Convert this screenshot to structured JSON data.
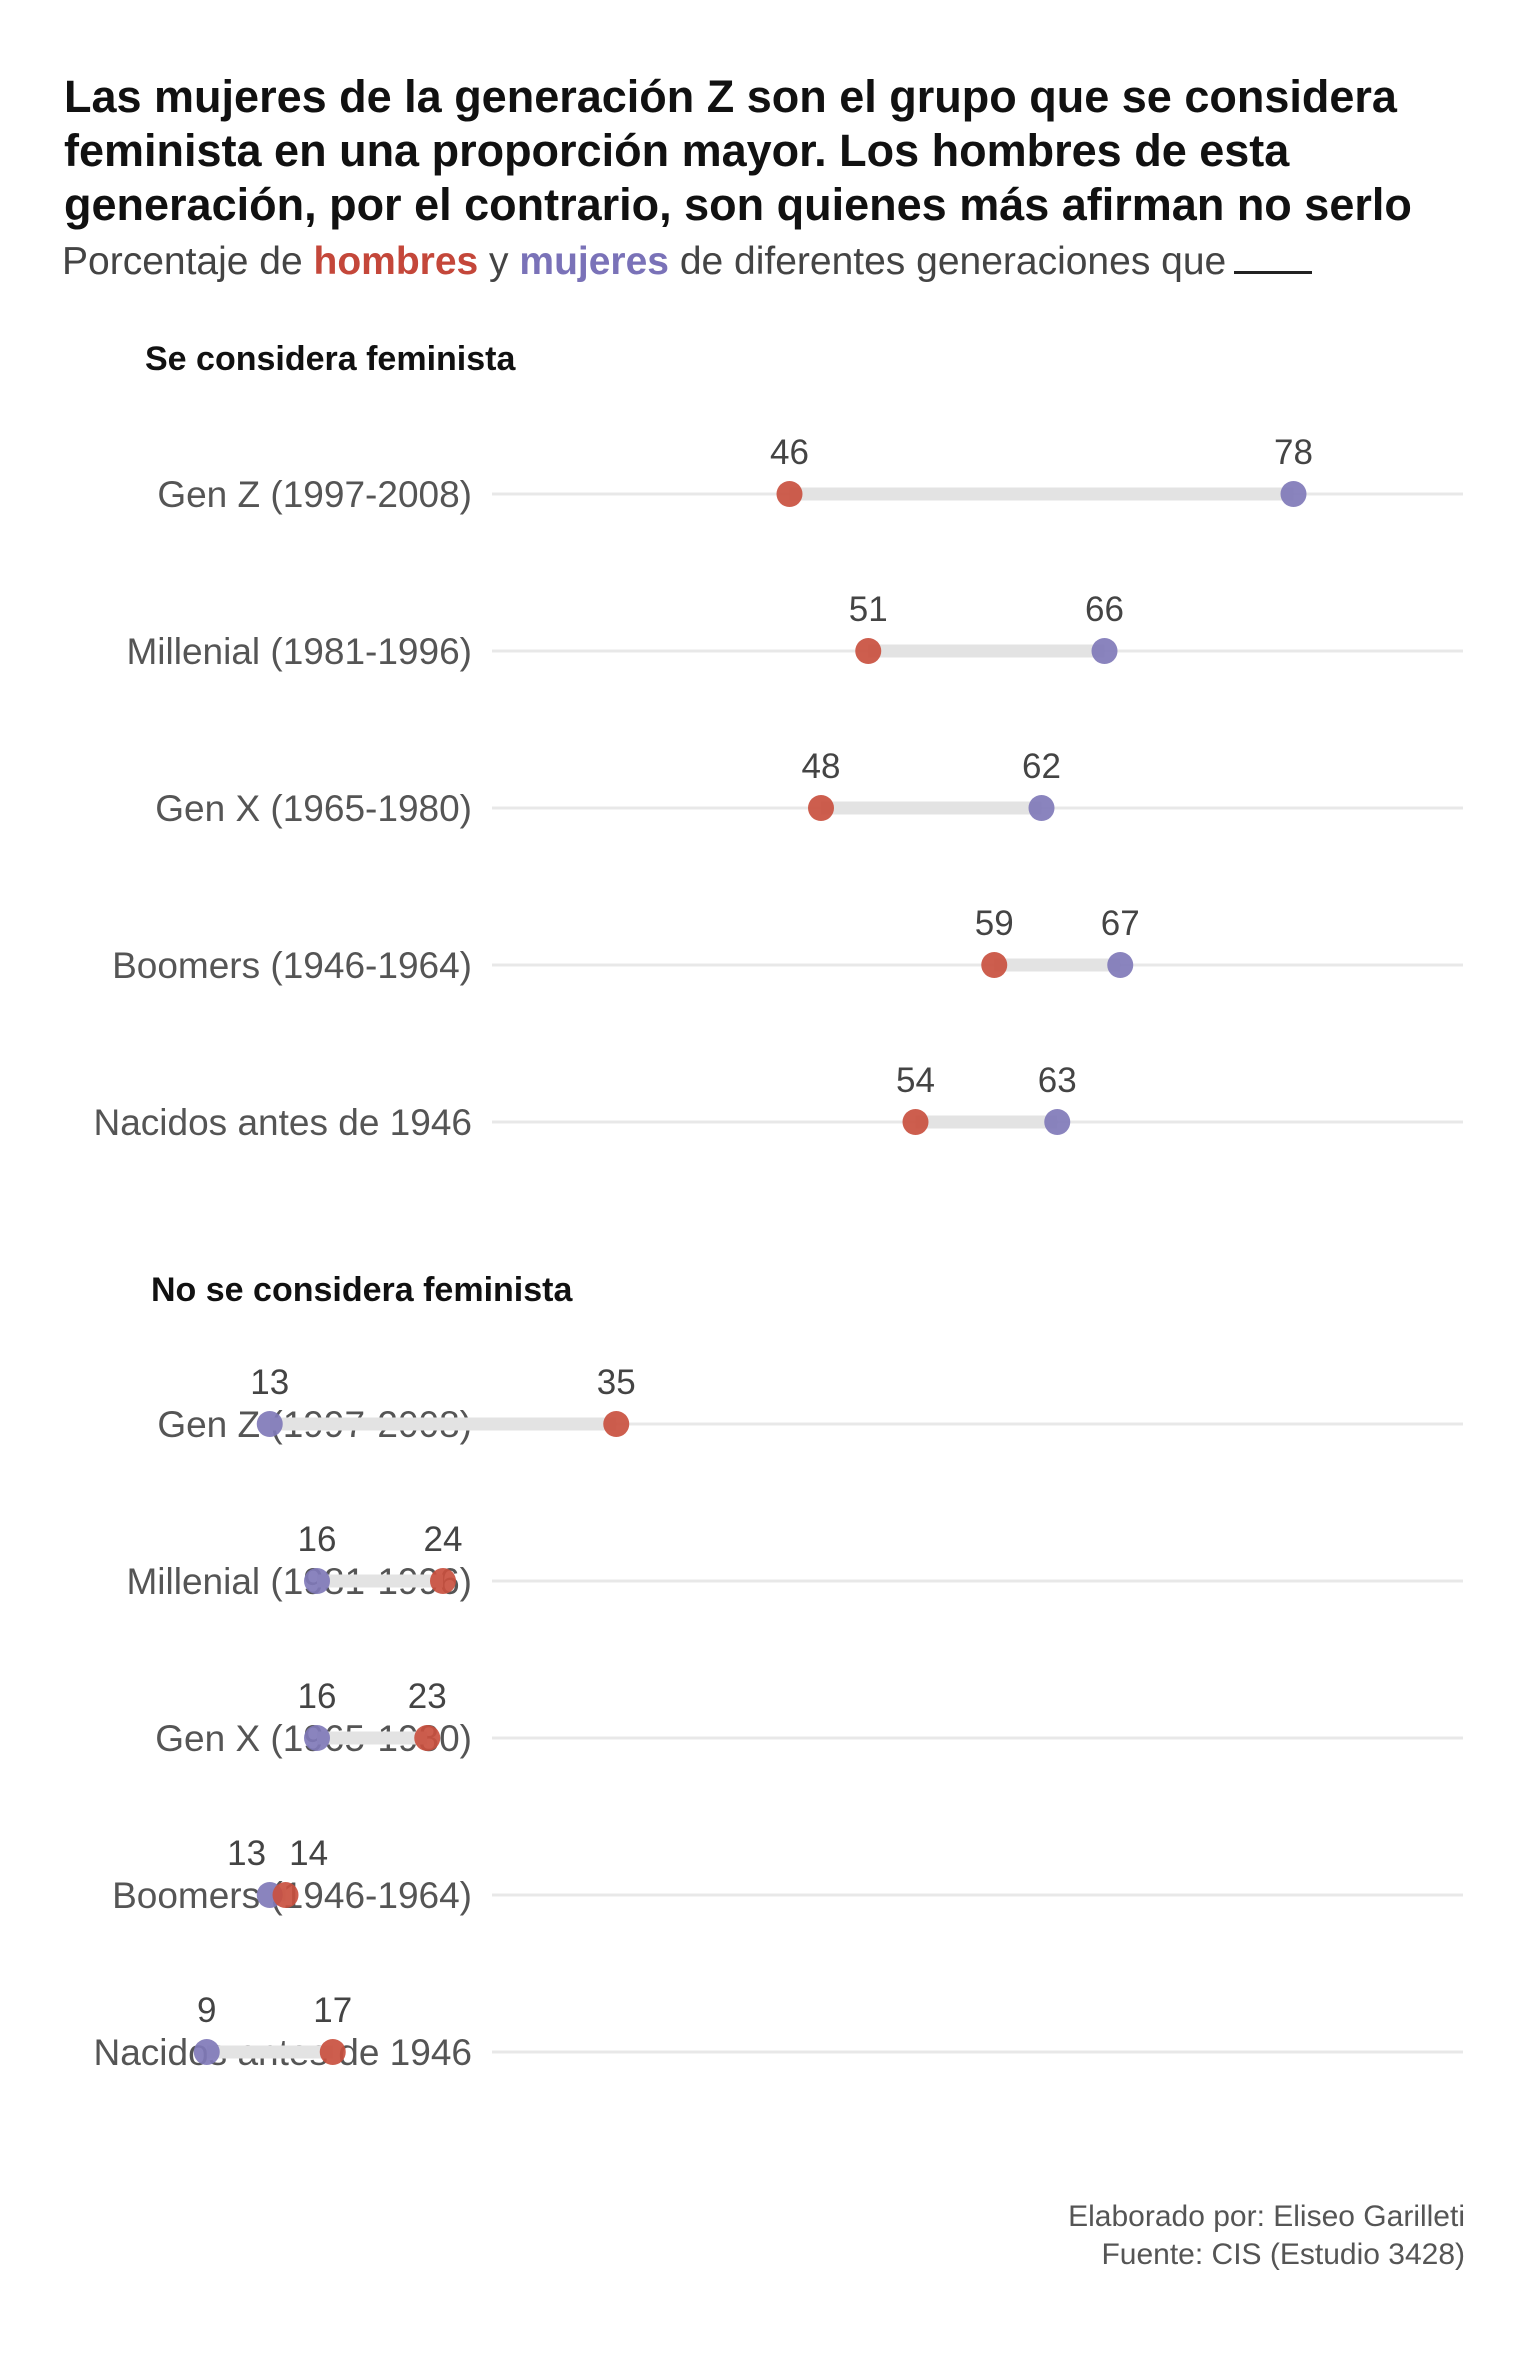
{
  "title": "Las mujeres de la generación Z son el grupo que se considera feminista en una proporción mayor. Los hombres de esta generación, por el contrario, son quienes más afirman no serlo",
  "subtitle": {
    "prefix": "Porcentaje de ",
    "men": "hombres",
    "middle": " y ",
    "women": "mujeres",
    "suffix": " de diferentes generaciones que"
  },
  "colors": {
    "men": "#c9503f",
    "women": "#8079b8",
    "connector": "#e3e3e3",
    "gridline": "#e8e8e8"
  },
  "credits": {
    "author": "Elaborado por: Eliseo Garilleti",
    "source": "Fuente: CIS (Estudio 3428)"
  },
  "chart_data": {
    "type": "dumbbell",
    "xlim": [
      0,
      100
    ],
    "grid": false,
    "legend": "in subtitle",
    "series": [
      {
        "name": "hombres",
        "color": "#c9503f"
      },
      {
        "name": "mujeres",
        "color": "#8079b8"
      }
    ],
    "panels": [
      {
        "title": "Se considera feminista",
        "rows": [
          {
            "label": "Gen Z (1997-2008)",
            "hombres": 46,
            "mujeres": 78
          },
          {
            "label": "Millenial (1981-1996)",
            "hombres": 51,
            "mujeres": 66
          },
          {
            "label": "Gen X (1965-1980)",
            "hombres": 48,
            "mujeres": 62
          },
          {
            "label": "Boomers (1946-1964)",
            "hombres": 59,
            "mujeres": 67
          },
          {
            "label": "Nacidos antes de 1946",
            "hombres": 54,
            "mujeres": 63
          }
        ]
      },
      {
        "title": "No se considera feminista",
        "rows": [
          {
            "label": "Gen Z (1997-2008)",
            "hombres": 35,
            "mujeres": 13
          },
          {
            "label": "Millenial (1981-1996)",
            "hombres": 24,
            "mujeres": 16
          },
          {
            "label": "Gen X (1965-1980)",
            "hombres": 23,
            "mujeres": 16
          },
          {
            "label": "Boomers (1946-1964)",
            "hombres": 14,
            "mujeres": 13
          },
          {
            "label": "Nacidos antes de 1946",
            "hombres": 17,
            "mujeres": 9
          }
        ]
      }
    ]
  }
}
